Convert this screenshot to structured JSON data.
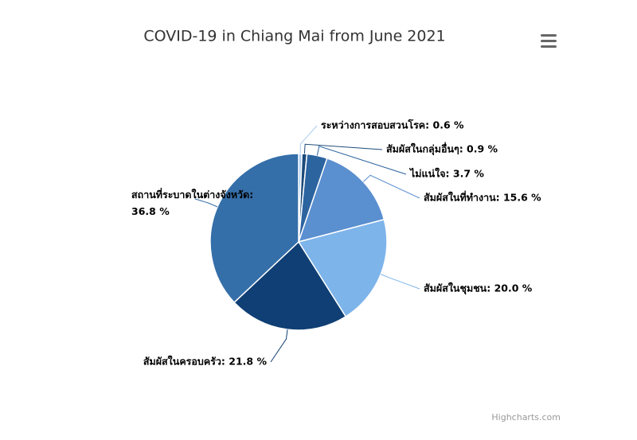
{
  "chart_data": {
    "type": "pie",
    "title": "COVID-19 in Chiang Mai from June 2021",
    "values": [
      0.6,
      0.9,
      3.7,
      15.6,
      20.0,
      21.8,
      36.8
    ],
    "value_labels": [
      "ระหว่างการสอบสวนโรค: 0.6 %",
      "สัมผัสในกลุ่มอื่นๆ: 0.9 %",
      "ไม่แน่ใจ: 3.7 %",
      "สัมผัสในที่ทำงาน: 15.6 %",
      "สัมผัสในชุมชน: 20.0 %",
      "สัมผัสในครอบครัว: 21.8 %",
      "สถานที่ระบาดในต่างจังหวัด:\n36.8 %"
    ],
    "colors": [
      "#a9cbef",
      "#1c4a7a",
      "#2c64a0",
      "#5a8fd0",
      "#7db4ea",
      "#0f3f74",
      "#356fa9"
    ],
    "credits": "Highcharts.com"
  }
}
